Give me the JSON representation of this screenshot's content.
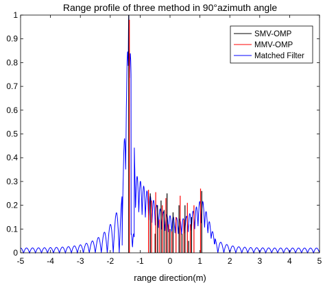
{
  "chart_data": {
    "type": "line",
    "title": "Range profile of three method in 90°azimuth angle",
    "xlabel": "range direction(m)",
    "ylabel": "",
    "xlim": [
      -5,
      5
    ],
    "ylim": [
      0,
      1
    ],
    "xticks": [
      "-5",
      "-4",
      "-3",
      "-2",
      "-1",
      "0",
      "1",
      "2",
      "3",
      "4",
      "5"
    ],
    "yticks": [
      "0",
      "0.1",
      "0.2",
      "0.3",
      "0.4",
      "0.5",
      "0.6",
      "0.7",
      "0.8",
      "0.9",
      "1"
    ],
    "grid": false,
    "legend": "top-right",
    "series": [
      {
        "name": "SMV-OMP",
        "color": "#000000",
        "kind": "stem",
        "points": [
          {
            "x": -1.38,
            "y": 1.0
          },
          {
            "x": -0.66,
            "y": 0.25
          },
          {
            "x": -0.5,
            "y": 0.08
          },
          {
            "x": -0.42,
            "y": 0.2
          },
          {
            "x": -0.3,
            "y": 0.22
          },
          {
            "x": -0.2,
            "y": 0.18
          },
          {
            "x": -0.1,
            "y": 0.25
          },
          {
            "x": 0.0,
            "y": 0.1
          },
          {
            "x": 0.1,
            "y": 0.17
          },
          {
            "x": 0.3,
            "y": 0.2
          },
          {
            "x": 0.4,
            "y": 0.08
          },
          {
            "x": 0.5,
            "y": 0.2
          },
          {
            "x": 0.62,
            "y": 0.05
          },
          {
            "x": 0.72,
            "y": 0.15
          },
          {
            "x": 1.06,
            "y": 0.26
          }
        ]
      },
      {
        "name": "MMV-OMP",
        "color": "#ff0000",
        "kind": "stem",
        "points": [
          {
            "x": -1.36,
            "y": 0.98
          },
          {
            "x": -0.72,
            "y": 0.265
          },
          {
            "x": -0.62,
            "y": 0.22
          },
          {
            "x": -0.48,
            "y": 0.255
          },
          {
            "x": -0.36,
            "y": 0.14
          },
          {
            "x": -0.26,
            "y": 0.2
          },
          {
            "x": -0.14,
            "y": 0.23
          },
          {
            "x": -0.04,
            "y": 0.12
          },
          {
            "x": 0.06,
            "y": 0.09
          },
          {
            "x": 0.2,
            "y": 0.15
          },
          {
            "x": 0.34,
            "y": 0.24
          },
          {
            "x": 0.46,
            "y": 0.14
          },
          {
            "x": 0.58,
            "y": 0.21
          },
          {
            "x": 0.68,
            "y": 0.12
          },
          {
            "x": 0.8,
            "y": 0.2
          },
          {
            "x": 1.02,
            "y": 0.27
          }
        ]
      },
      {
        "name": "Matched Filter",
        "color": "#0000ff",
        "kind": "line",
        "points": [
          {
            "x": -1.6,
            "y": 0.24
          },
          {
            "x": -1.38,
            "y": 1.0
          },
          {
            "x": -1.15,
            "y": 0.33
          },
          {
            "x": -0.66,
            "y": 0.24
          },
          {
            "x": -0.38,
            "y": 0.19
          },
          {
            "x": -0.1,
            "y": 0.16
          },
          {
            "x": 0.4,
            "y": 0.14
          },
          {
            "x": 0.82,
            "y": 0.18
          },
          {
            "x": 1.06,
            "y": 0.23
          },
          {
            "x": 1.5,
            "y": 0.06
          }
        ]
      }
    ]
  }
}
